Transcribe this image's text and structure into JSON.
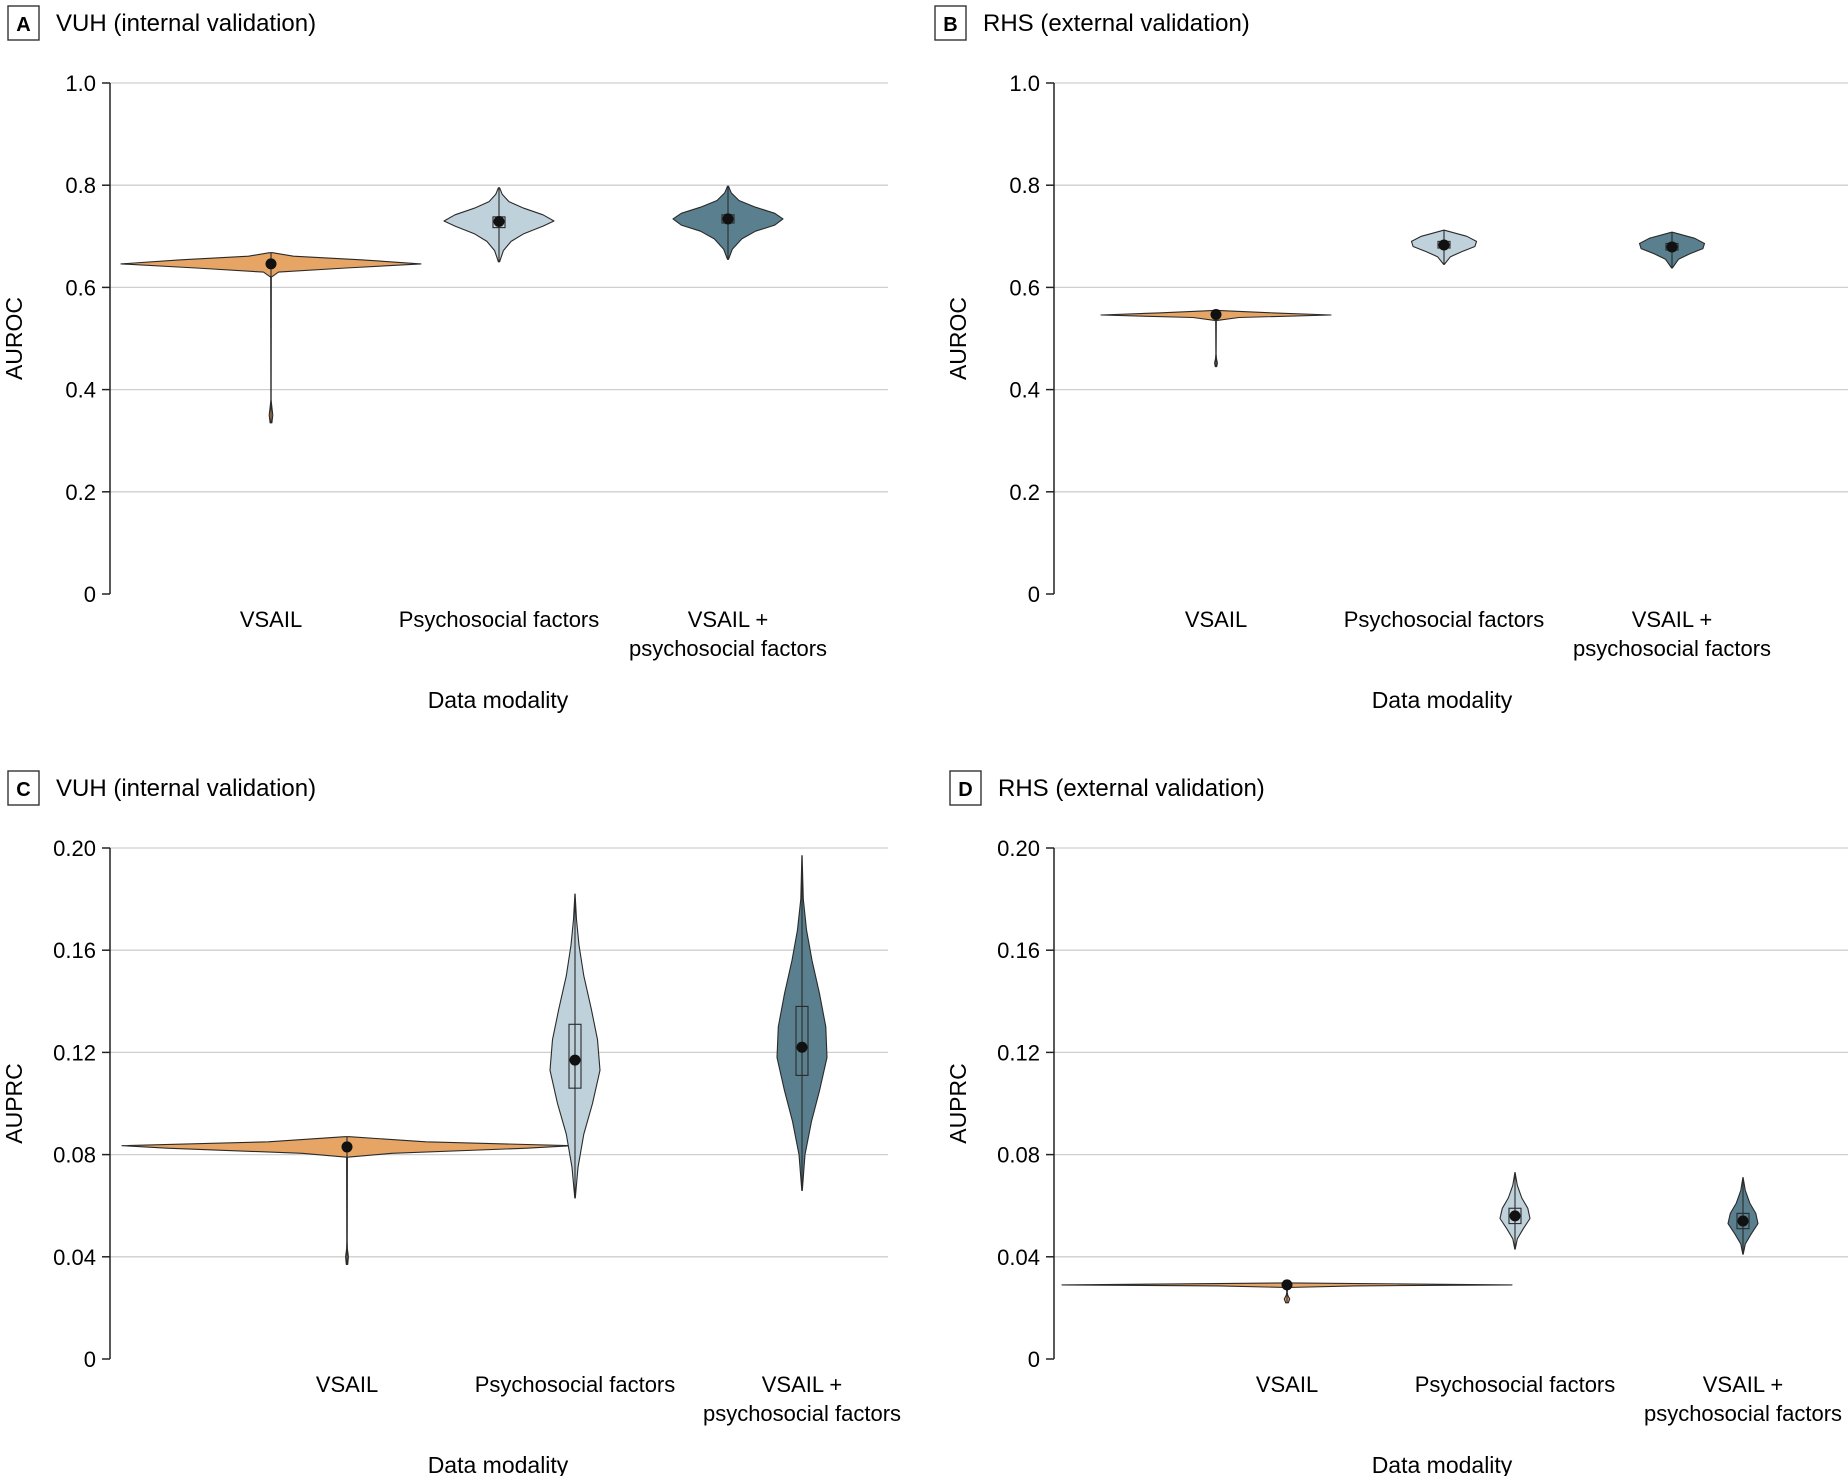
{
  "colors": {
    "vsail": "#e6a564",
    "psychosocial": "#bfd1da",
    "combined": "#5a7f8e",
    "grid": "#cfcfcf",
    "axis": "#222222",
    "outline": "#2a2a2a"
  },
  "chart_data": [
    {
      "type": "violin",
      "panel_letter": "A",
      "title": "VUH (internal validation)",
      "xlabel": "Data modality",
      "ylabel": "AUROC",
      "ylim": [
        0,
        1.0
      ],
      "yticks": [
        0,
        0.2,
        0.4,
        0.6,
        0.8,
        1.0
      ],
      "ytick_labels": [
        "0",
        "0.2",
        "0.4",
        "0.6",
        "0.8",
        "1.0"
      ],
      "categories": [
        [
          "VSAIL"
        ],
        [
          "Psychosocial factors"
        ],
        [
          "VSAIL +",
          "psychosocial factors"
        ]
      ],
      "grid": true,
      "series": [
        {
          "median": 0.646,
          "q1": 0.642,
          "q3": 0.65,
          "min": 0.335,
          "max": 0.668,
          "half_width": 0.6,
          "profile": [
            [
              0.335,
              0.006
            ],
            [
              0.35,
              0.012
            ],
            [
              0.365,
              0.006
            ],
            [
              0.38,
              0.001
            ],
            [
              0.62,
              0.002
            ],
            [
              0.63,
              0.05
            ],
            [
              0.638,
              0.5
            ],
            [
              0.646,
              1.0
            ],
            [
              0.654,
              0.6
            ],
            [
              0.661,
              0.15
            ],
            [
              0.668,
              0.01
            ]
          ]
        },
        {
          "median": 0.729,
          "q1": 0.717,
          "q3": 0.738,
          "min": 0.65,
          "max": 0.795,
          "half_width": 0.22,
          "profile": [
            [
              0.65,
              0.01
            ],
            [
              0.672,
              0.08
            ],
            [
              0.69,
              0.22
            ],
            [
              0.705,
              0.45
            ],
            [
              0.72,
              0.8
            ],
            [
              0.73,
              1.0
            ],
            [
              0.742,
              0.8
            ],
            [
              0.755,
              0.45
            ],
            [
              0.768,
              0.18
            ],
            [
              0.782,
              0.06
            ],
            [
              0.795,
              0.01
            ]
          ]
        },
        {
          "median": 0.734,
          "q1": 0.726,
          "q3": 0.742,
          "min": 0.655,
          "max": 0.798,
          "half_width": 0.22,
          "profile": [
            [
              0.655,
              0.01
            ],
            [
              0.675,
              0.08
            ],
            [
              0.695,
              0.25
            ],
            [
              0.71,
              0.5
            ],
            [
              0.722,
              0.85
            ],
            [
              0.734,
              1.0
            ],
            [
              0.745,
              0.85
            ],
            [
              0.757,
              0.5
            ],
            [
              0.77,
              0.2
            ],
            [
              0.785,
              0.06
            ],
            [
              0.798,
              0.01
            ]
          ]
        }
      ]
    },
    {
      "type": "violin",
      "panel_letter": "B",
      "title": "RHS (external validation)",
      "xlabel": "Data modality",
      "ylabel": "AUROC",
      "ylim": [
        0,
        1.0
      ],
      "yticks": [
        0,
        0.2,
        0.4,
        0.6,
        0.8,
        1.0
      ],
      "ytick_labels": [
        "0",
        "0.2",
        "0.4",
        "0.6",
        "0.8",
        "1.0"
      ],
      "categories": [
        [
          "VSAIL"
        ],
        [
          "Psychosocial factors"
        ],
        [
          "VSAIL +",
          "psychosocial factors"
        ]
      ],
      "grid": true,
      "series": [
        {
          "median": 0.547,
          "q1": 0.545,
          "q3": 0.549,
          "min": 0.445,
          "max": 0.555,
          "half_width": 0.46,
          "profile": [
            [
              0.445,
              0.006
            ],
            [
              0.452,
              0.012
            ],
            [
              0.46,
              0.004
            ],
            [
              0.47,
              0.001
            ],
            [
              0.535,
              0.003
            ],
            [
              0.541,
              0.2
            ],
            [
              0.546,
              1.0
            ],
            [
              0.55,
              0.5
            ],
            [
              0.555,
              0.01
            ]
          ]
        },
        {
          "median": 0.683,
          "q1": 0.677,
          "q3": 0.69,
          "min": 0.645,
          "max": 0.712,
          "half_width": 0.13,
          "profile": [
            [
              0.645,
              0.01
            ],
            [
              0.66,
              0.2
            ],
            [
              0.67,
              0.55
            ],
            [
              0.68,
              0.95
            ],
            [
              0.69,
              1.0
            ],
            [
              0.7,
              0.7
            ],
            [
              0.712,
              0.01
            ]
          ]
        },
        {
          "median": 0.679,
          "q1": 0.673,
          "q3": 0.686,
          "min": 0.638,
          "max": 0.708,
          "half_width": 0.13,
          "profile": [
            [
              0.638,
              0.01
            ],
            [
              0.655,
              0.2
            ],
            [
              0.666,
              0.55
            ],
            [
              0.676,
              0.95
            ],
            [
              0.686,
              1.0
            ],
            [
              0.696,
              0.7
            ],
            [
              0.708,
              0.01
            ]
          ]
        }
      ]
    },
    {
      "type": "violin",
      "panel_letter": "C",
      "title": "VUH (internal validation)",
      "xlabel": "Data modality",
      "ylabel": "AUPRC",
      "ylim": [
        0,
        0.2
      ],
      "yticks": [
        0,
        0.04,
        0.08,
        0.12,
        0.16,
        0.2
      ],
      "ytick_labels": [
        "0",
        "0.04",
        "0.08",
        "0.12",
        "0.16",
        "0.20"
      ],
      "categories": [
        [
          "VSAIL"
        ],
        [
          "Psychosocial factors"
        ],
        [
          "VSAIL +",
          "psychosocial factors"
        ]
      ],
      "grid": true,
      "series": [
        {
          "median": 0.083,
          "q1": 0.0825,
          "q3": 0.0838,
          "min": 0.037,
          "max": 0.087,
          "half_width": 0.9,
          "profile": [
            [
              0.037,
              0.003
            ],
            [
              0.04,
              0.006
            ],
            [
              0.043,
              0.002
            ],
            [
              0.046,
              0.001
            ],
            [
              0.079,
              0.002
            ],
            [
              0.0805,
              0.2
            ],
            [
              0.0825,
              0.8
            ],
            [
              0.0835,
              1.0
            ],
            [
              0.085,
              0.35
            ],
            [
              0.087,
              0.01
            ]
          ]
        },
        {
          "median": 0.117,
          "q1": 0.106,
          "q3": 0.131,
          "min": 0.063,
          "max": 0.182,
          "half_width": 0.1,
          "profile": [
            [
              0.063,
              0.01
            ],
            [
              0.075,
              0.12
            ],
            [
              0.088,
              0.35
            ],
            [
              0.1,
              0.7
            ],
            [
              0.113,
              1.0
            ],
            [
              0.125,
              0.9
            ],
            [
              0.137,
              0.65
            ],
            [
              0.15,
              0.35
            ],
            [
              0.162,
              0.16
            ],
            [
              0.172,
              0.06
            ],
            [
              0.182,
              0.005
            ]
          ]
        },
        {
          "median": 0.122,
          "q1": 0.111,
          "q3": 0.138,
          "min": 0.066,
          "max": 0.197,
          "half_width": 0.1,
          "profile": [
            [
              0.066,
              0.01
            ],
            [
              0.08,
              0.12
            ],
            [
              0.093,
              0.38
            ],
            [
              0.105,
              0.7
            ],
            [
              0.118,
              1.0
            ],
            [
              0.13,
              0.95
            ],
            [
              0.143,
              0.7
            ],
            [
              0.156,
              0.4
            ],
            [
              0.168,
              0.18
            ],
            [
              0.18,
              0.05
            ],
            [
              0.197,
              0.005
            ]
          ]
        }
      ]
    },
    {
      "type": "violin",
      "panel_letter": "D",
      "title": "RHS (external validation)",
      "xlabel": "Data modality",
      "ylabel": "AUPRC",
      "ylim": [
        0,
        0.2
      ],
      "yticks": [
        0,
        0.04,
        0.08,
        0.12,
        0.16,
        0.2
      ],
      "ytick_labels": [
        "0",
        "0.04",
        "0.08",
        "0.12",
        "0.16",
        "0.20"
      ],
      "categories": [
        [
          "VSAIL"
        ],
        [
          "Psychosocial factors"
        ],
        [
          "VSAIL +",
          "psychosocial factors"
        ]
      ],
      "grid": true,
      "series": [
        {
          "median": 0.029,
          "q1": 0.0288,
          "q3": 0.0293,
          "min": 0.022,
          "max": 0.0298,
          "half_width": 0.9,
          "profile": [
            [
              0.022,
              0.006
            ],
            [
              0.0235,
              0.012
            ],
            [
              0.025,
              0.003
            ],
            [
              0.0262,
              0.001
            ],
            [
              0.028,
              0.003
            ],
            [
              0.0286,
              0.3
            ],
            [
              0.029,
              1.0
            ],
            [
              0.0294,
              0.5
            ],
            [
              0.0298,
              0.01
            ]
          ]
        },
        {
          "median": 0.056,
          "q1": 0.053,
          "q3": 0.059,
          "min": 0.043,
          "max": 0.073,
          "half_width": 0.06,
          "profile": [
            [
              0.043,
              0.01
            ],
            [
              0.047,
              0.15
            ],
            [
              0.051,
              0.55
            ],
            [
              0.055,
              1.0
            ],
            [
              0.059,
              0.85
            ],
            [
              0.063,
              0.45
            ],
            [
              0.068,
              0.15
            ],
            [
              0.073,
              0.005
            ]
          ]
        },
        {
          "median": 0.054,
          "q1": 0.051,
          "q3": 0.057,
          "min": 0.041,
          "max": 0.071,
          "half_width": 0.06,
          "profile": [
            [
              0.041,
              0.01
            ],
            [
              0.045,
              0.15
            ],
            [
              0.049,
              0.55
            ],
            [
              0.053,
              1.0
            ],
            [
              0.057,
              0.85
            ],
            [
              0.061,
              0.45
            ],
            [
              0.066,
              0.15
            ],
            [
              0.071,
              0.005
            ]
          ]
        }
      ]
    }
  ]
}
